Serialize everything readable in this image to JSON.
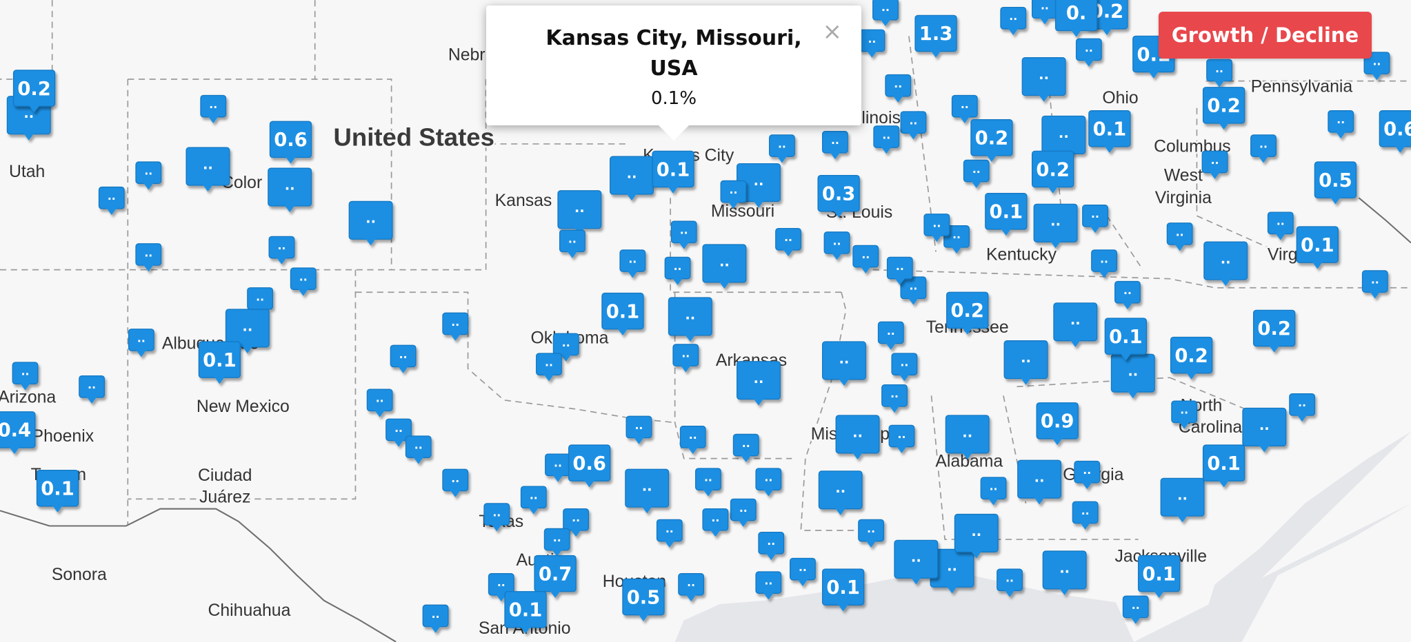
{
  "map_labels": [
    "Nebr",
    "United States",
    "Utah",
    "Color",
    "Kansas",
    "Kansas City",
    "Missouri",
    "St. Louis",
    "Illinois",
    "Ohio",
    "Columbus",
    "West",
    "Virginia",
    "Pennsylvania",
    "Kentucky",
    "Virginia",
    "Tennessee",
    "Oklahoma",
    "Arkansas",
    "Mississippi",
    "Alabama",
    "Georgia",
    "North",
    "Carolina",
    "Albuquerque",
    "New Mexico",
    "Arizona",
    "Phoenix",
    "Tucson",
    "Ciudad",
    "Juárez",
    "Texas",
    "Austin",
    "Houston",
    "San Antonio",
    "Sonora",
    "Chihuahua",
    "Jacksonville"
  ],
  "markers": [
    "0.2",
    "..",
    "0.6",
    "..",
    "..",
    "..",
    "..",
    "..",
    "..",
    "..",
    "..",
    "..",
    "..",
    "..",
    "0.1",
    "..",
    "..",
    "..",
    "0.4",
    "0.1",
    "..",
    "..",
    "..",
    "..",
    "..",
    "..",
    "..",
    "..",
    "..",
    "0.1",
    "..",
    "..",
    "..",
    "0.1",
    "..",
    "..",
    "..",
    "..",
    "..",
    "..",
    "..",
    "0.3",
    "..",
    "..",
    "1.3",
    "..",
    "0.2",
    "..",
    "..",
    "0.1",
    "0.2",
    "..",
    "0.1",
    "0.2",
    "0.1",
    "..",
    "0.2",
    "0.5",
    "0.1",
    "..",
    "..",
    "..",
    "0.6",
    "0.2",
    "..",
    "0.1",
    "0.2",
    "0.2",
    "..",
    "..",
    "0.9",
    "..",
    "..",
    "..",
    "..",
    "0.1",
    "..",
    "..",
    "..",
    "..",
    "0.1",
    "..",
    "..",
    "..",
    "..",
    "0.1",
    "..",
    "..",
    "..",
    "..",
    "..",
    "..",
    "..",
    "..",
    "0.6",
    "0.7",
    "0.1",
    "0.5",
    "..",
    "..",
    "..",
    "..",
    "..",
    "..",
    "..",
    "..",
    "..",
    "..",
    "..",
    "..",
    "..",
    "..",
    "..",
    "..",
    "..",
    "..",
    "..",
    "..",
    "..",
    "..",
    "..",
    "..",
    "..",
    "..",
    "..",
    "..",
    "..",
    "..",
    "..",
    "..",
    "..",
    "..",
    "..",
    "..",
    "..",
    "..",
    "..",
    "..",
    "..",
    "..",
    "..",
    "..",
    "..",
    "0.",
    "..",
    "..",
    ".."
  ],
  "popup": {
    "title": "Kansas City, Missouri, USA",
    "value": "0.1%",
    "close": "×"
  },
  "toggle_button": "Growth / Decline"
}
